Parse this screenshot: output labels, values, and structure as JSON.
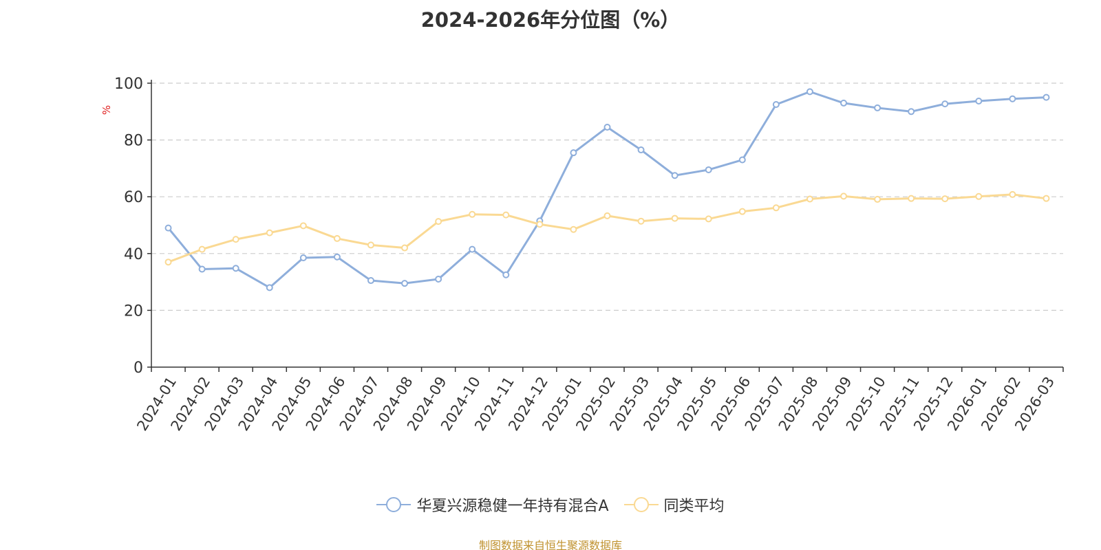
{
  "chart_data": {
    "type": "line",
    "title": "2024-2026年分位图（%）",
    "ylabel": "%",
    "ylim": [
      0,
      100
    ],
    "yticks": [
      0,
      20,
      40,
      60,
      80,
      100
    ],
    "grid": true,
    "legend_position": "bottom-center",
    "categories": [
      "2024-01",
      "2024-02",
      "2024-03",
      "2024-04",
      "2024-05",
      "2024-06",
      "2024-07",
      "2024-08",
      "2024-09",
      "2024-10",
      "2024-11",
      "2024-12",
      "2025-01",
      "2025-02",
      "2025-03",
      "2025-04",
      "2025-05",
      "2025-06",
      "2025-07",
      "2025-08",
      "2025-09",
      "2025-10",
      "2025-11",
      "2025-12",
      "2026-01",
      "2026-02",
      "2026-03"
    ],
    "series": [
      {
        "name": "华夏兴源稳健一年持有混合A",
        "color": "#8eaedb",
        "values": [
          49.0,
          34.5,
          34.8,
          28.0,
          38.5,
          38.8,
          30.5,
          29.5,
          31.0,
          41.5,
          32.5,
          51.5,
          75.5,
          84.5,
          76.5,
          67.5,
          69.5,
          73.0,
          92.5,
          97.0,
          93.0,
          91.3,
          90.0,
          92.7,
          93.7,
          94.5,
          95.0
        ]
      },
      {
        "name": "同类平均",
        "color": "#fad993",
        "values": [
          37.0,
          41.5,
          45.0,
          47.3,
          49.8,
          45.3,
          43.0,
          42.0,
          51.3,
          53.8,
          53.6,
          50.3,
          48.5,
          53.3,
          51.4,
          52.4,
          52.2,
          54.8,
          56.1,
          59.2,
          60.2,
          59.1,
          59.4,
          59.3,
          60.1,
          60.8,
          59.4
        ]
      }
    ],
    "source_note": "制图数据来自恒生聚源数据库"
  }
}
